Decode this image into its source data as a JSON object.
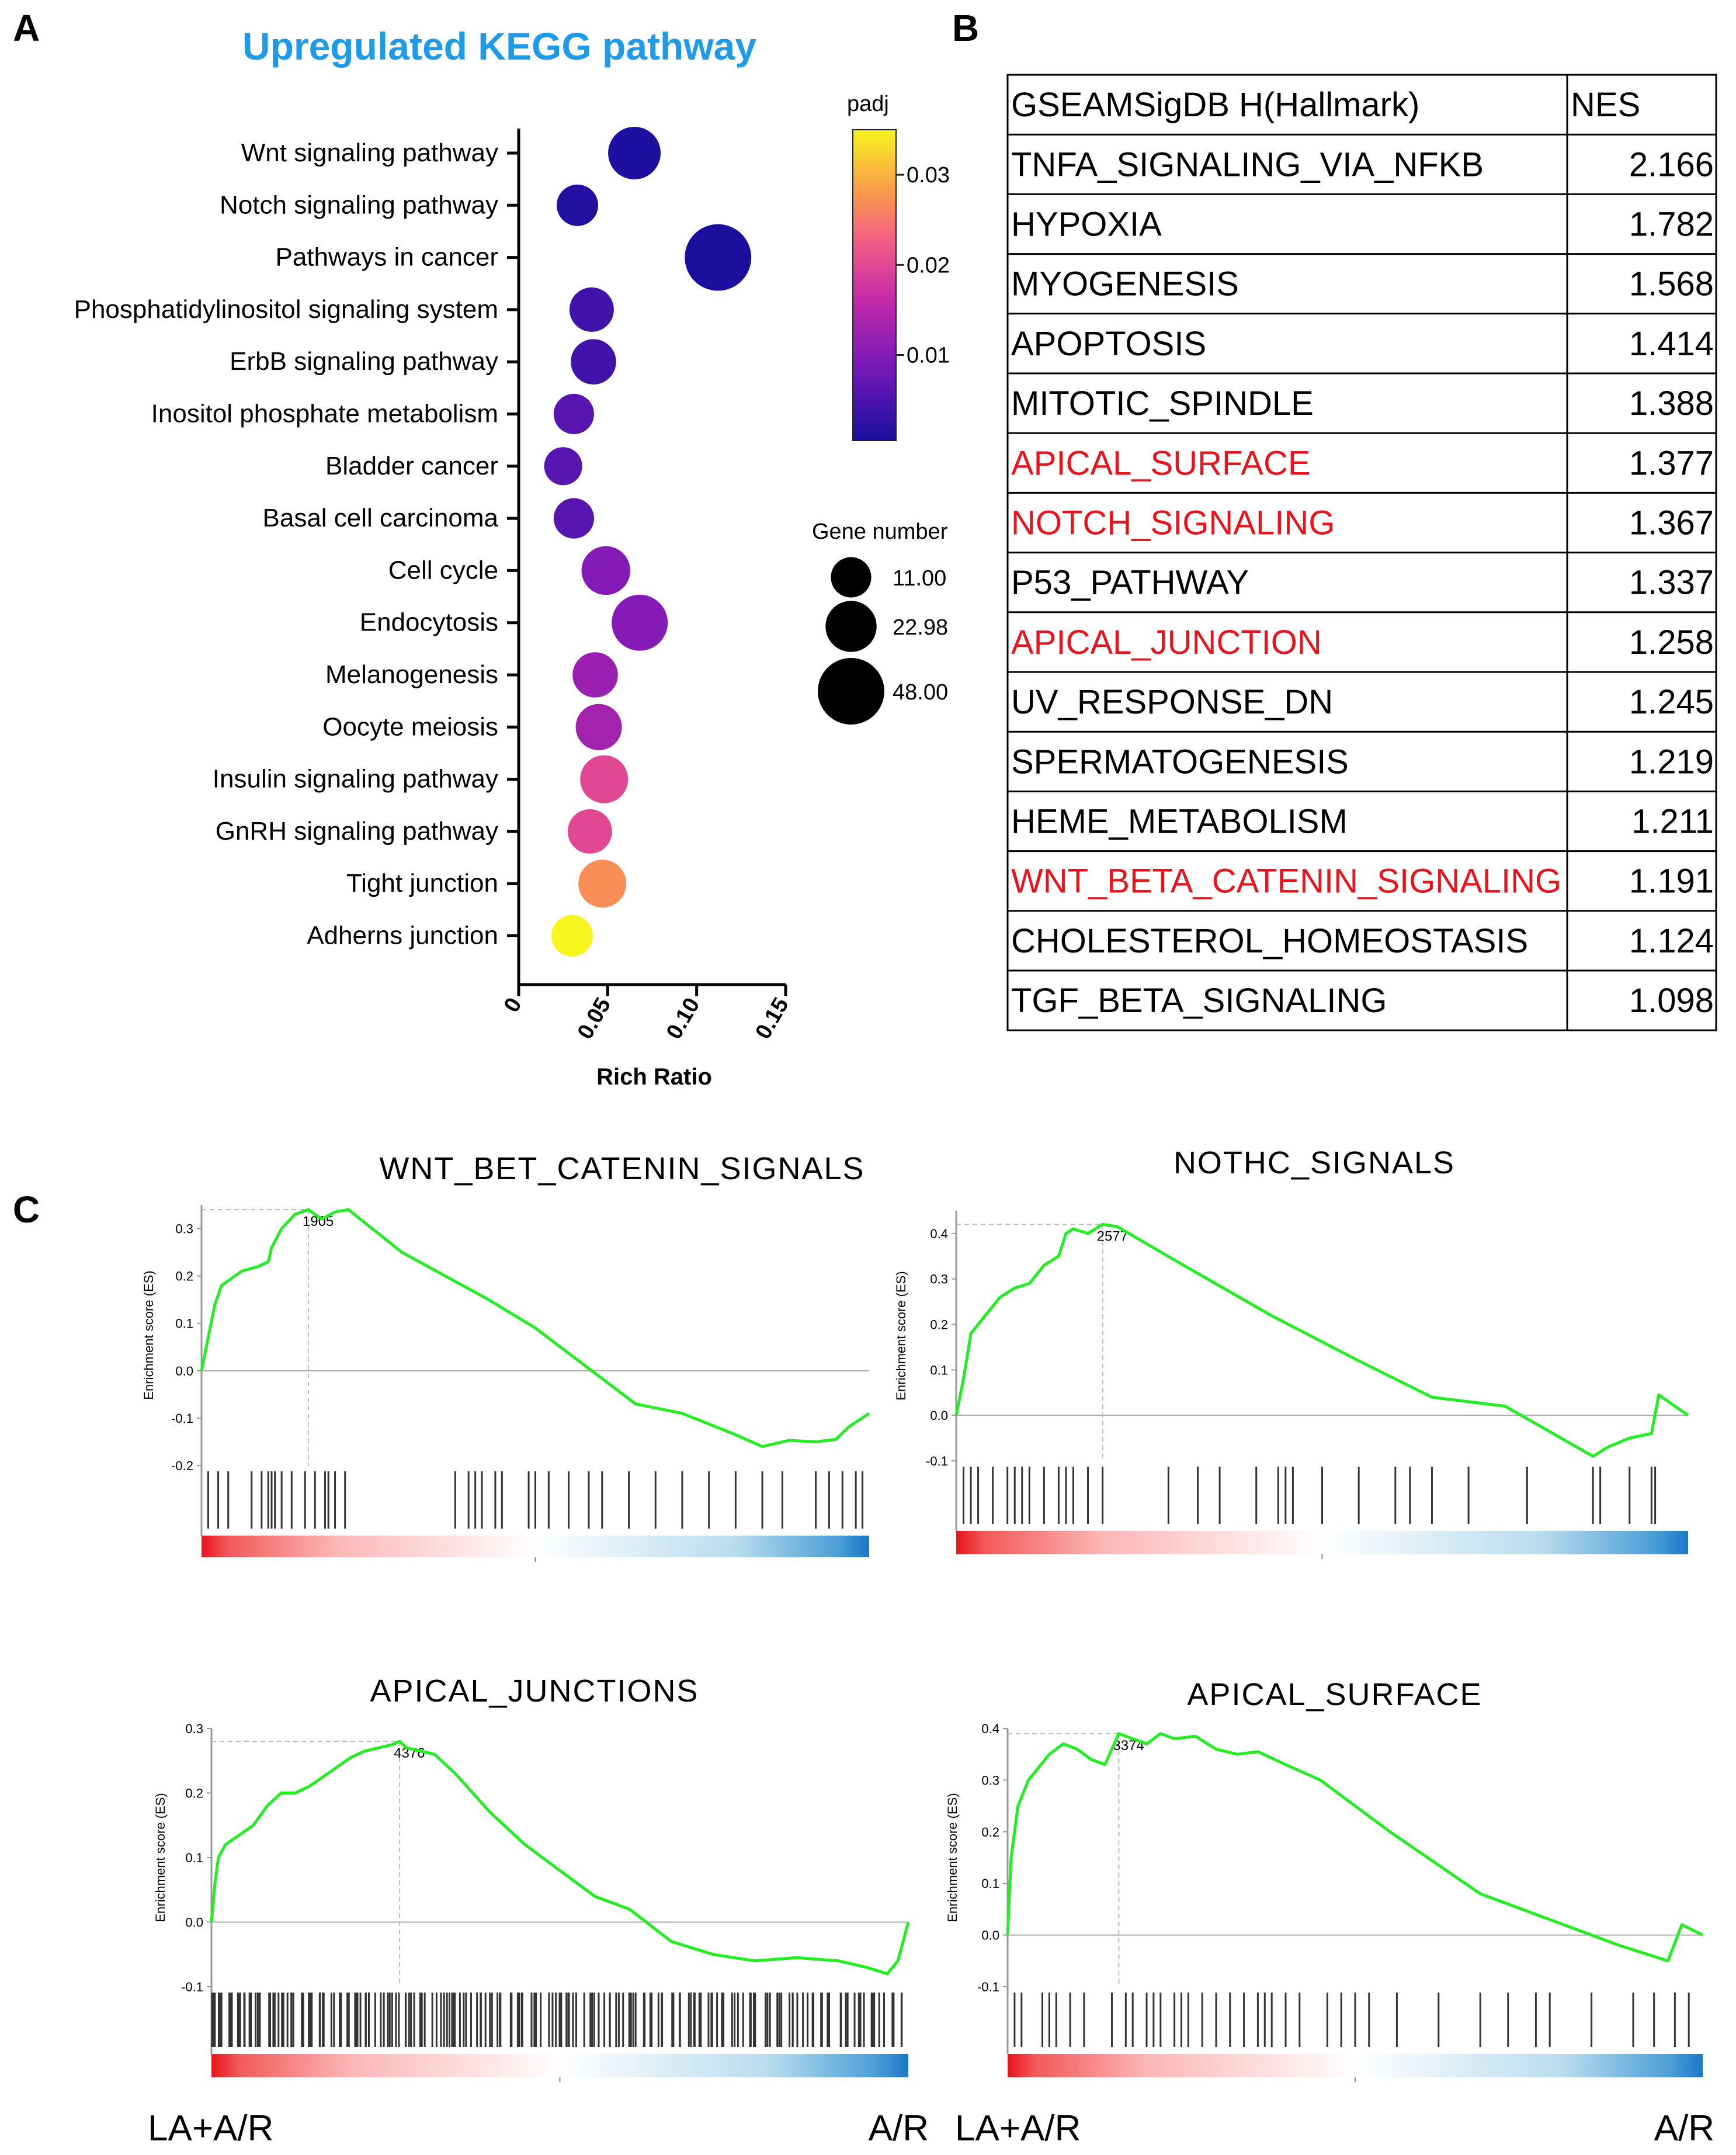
{
  "panels": {
    "a": "A",
    "b": "B",
    "c": "C"
  },
  "colors": {
    "title_blue": "#1e9be8",
    "highlight_red": "#e8141c",
    "es_line": "#22ee22",
    "rank_red": "#e8141c",
    "rank_blue": "#1b78c8"
  },
  "chart_data": [
    {
      "type": "scatter",
      "title": "Upregulated KEGG pathway",
      "xlabel": "Rich Ratio",
      "ylabel": "",
      "xlim": [
        0,
        0.15
      ],
      "xticks": [
        "0",
        "0.05",
        "0.10",
        "0.15"
      ],
      "color_legend": {
        "title": "padj",
        "ticks": [
          "0.03",
          "0.02",
          "0.01"
        ],
        "range": [
          0.0005,
          0.035
        ]
      },
      "size_legend": {
        "title": "Gene number",
        "values": [
          "11.00",
          "22.98",
          "48.00"
        ]
      },
      "points": [
        {
          "pathway": "Wnt signaling pathway",
          "rich_ratio": 0.065,
          "padj": 0.0008,
          "genes": 25
        },
        {
          "pathway": "Notch signaling pathway",
          "rich_ratio": 0.033,
          "padj": 0.0012,
          "genes": 12
        },
        {
          "pathway": "Pathways in cancer",
          "rich_ratio": 0.112,
          "padj": 0.0006,
          "genes": 48
        },
        {
          "pathway": "Phosphatidylinositol signaling system",
          "rich_ratio": 0.041,
          "padj": 0.004,
          "genes": 15
        },
        {
          "pathway": "ErbB signaling pathway",
          "rich_ratio": 0.042,
          "padj": 0.004,
          "genes": 16
        },
        {
          "pathway": "Inositol phosphate metabolism ",
          "rich_ratio": 0.031,
          "padj": 0.006,
          "genes": 11
        },
        {
          "pathway": "Bladder cancer",
          "rich_ratio": 0.025,
          "padj": 0.006,
          "genes": 9
        },
        {
          "pathway": "Basal cell carcinoma",
          "rich_ratio": 0.031,
          "padj": 0.006,
          "genes": 11
        },
        {
          "pathway": "Cell cycle",
          "rich_ratio": 0.049,
          "padj": 0.01,
          "genes": 20
        },
        {
          "pathway": "Endocytosis",
          "rich_ratio": 0.068,
          "padj": 0.01,
          "genes": 30
        },
        {
          "pathway": "Melanogenesis",
          "rich_ratio": 0.043,
          "padj": 0.012,
          "genes": 16
        },
        {
          "pathway": "Oocyte meiosis",
          "rich_ratio": 0.045,
          "padj": 0.013,
          "genes": 17
        },
        {
          "pathway": "Insulin signaling pathway",
          "rich_ratio": 0.048,
          "padj": 0.02,
          "genes": 19
        },
        {
          "pathway": "GnRH signaling pathway",
          "rich_ratio": 0.04,
          "padj": 0.02,
          "genes": 15
        },
        {
          "pathway": "Tight junction",
          "rich_ratio": 0.047,
          "padj": 0.027,
          "genes": 19
        },
        {
          "pathway": "Adherns junction",
          "rich_ratio": 0.03,
          "padj": 0.035,
          "genes": 12
        }
      ]
    },
    {
      "type": "table",
      "columns": [
        "GSEAMSigDB H(Hallmark)",
        "NES"
      ],
      "rows": [
        {
          "name": "TNFA_SIGNALING_VIA_NFKB",
          "nes": "2.166",
          "highlight": false
        },
        {
          "name": "HYPOXIA",
          "nes": "1.782",
          "highlight": false
        },
        {
          "name": "MYOGENESIS",
          "nes": "1.568",
          "highlight": false
        },
        {
          "name": "APOPTOSIS",
          "nes": "1.414",
          "highlight": false
        },
        {
          "name": "MITOTIC_SPINDLE",
          "nes": "1.388",
          "highlight": false
        },
        {
          "name": "APICAL_SURFACE",
          "nes": "1.377",
          "highlight": true
        },
        {
          "name": "NOTCH_SIGNALING",
          "nes": "1.367",
          "highlight": true
        },
        {
          "name": "P53_PATHWAY",
          "nes": "1.337",
          "highlight": false
        },
        {
          "name": "APICAL_JUNCTION",
          "nes": "1.258",
          "highlight": true
        },
        {
          "name": "UV_RESPONSE_DN",
          "nes": "1.245",
          "highlight": false
        },
        {
          "name": "SPERMATOGENESIS",
          "nes": "1.219",
          "highlight": false
        },
        {
          "name": "HEME_METABOLISM",
          "nes": "1.211",
          "highlight": false
        },
        {
          "name": "WNT_BETA_CATENIN_SIGNALING",
          "nes": "1.191",
          "highlight": true
        },
        {
          "name": "CHOLESTEROL_HOMEOSTASIS",
          "nes": "1.124",
          "highlight": false
        },
        {
          "name": "TGF_BETA_SIGNALING",
          "nes": "1.098",
          "highlight": false
        }
      ]
    },
    {
      "type": "line",
      "title": "WNT_BET_CATENIN_SIGNALS",
      "ylabel": "Enrichment score (ES)",
      "ylim": [
        -0.2,
        0.35
      ],
      "yticks": [
        "0.3",
        "0.2",
        "0.1",
        "0.0",
        "-0.1",
        "-0.2"
      ],
      "peak_label": "1905",
      "x": [
        0,
        0.01,
        0.02,
        0.03,
        0.06,
        0.085,
        0.1,
        0.105,
        0.12,
        0.14,
        0.16,
        0.18,
        0.2,
        0.22,
        0.3,
        0.43,
        0.5,
        0.65,
        0.72,
        0.8,
        0.84,
        0.88,
        0.92,
        0.95,
        0.97,
        1.0
      ],
      "y": [
        0,
        0.07,
        0.14,
        0.18,
        0.21,
        0.22,
        0.23,
        0.26,
        0.3,
        0.33,
        0.34,
        0.32,
        0.335,
        0.34,
        0.25,
        0.15,
        0.09,
        -0.07,
        -0.09,
        -0.135,
        -0.16,
        -0.147,
        -0.15,
        -0.145,
        -0.118,
        -0.09
      ],
      "hits": [
        0.01,
        0.025,
        0.04,
        0.075,
        0.09,
        0.1,
        0.105,
        0.11,
        0.12,
        0.135,
        0.155,
        0.17,
        0.185,
        0.19,
        0.2,
        0.215,
        0.38,
        0.4,
        0.41,
        0.42,
        0.44,
        0.45,
        0.49,
        0.5,
        0.52,
        0.55,
        0.58,
        0.6,
        0.64,
        0.68,
        0.72,
        0.76,
        0.8,
        0.84,
        0.87,
        0.92,
        0.94,
        0.96,
        0.98,
        0.99
      ],
      "xlabel_left": "",
      "xlabel_right": ""
    },
    {
      "type": "line",
      "title": "NOTHC_SIGNALS",
      "ylabel": "Enrichment score (ES)",
      "ylim": [
        -0.1,
        0.45
      ],
      "yticks": [
        "0.4",
        "0.3",
        "0.2",
        "0.1",
        "0.0",
        "-0.1"
      ],
      "peak_label": "2577",
      "x": [
        0,
        0.01,
        0.02,
        0.04,
        0.06,
        0.08,
        0.1,
        0.12,
        0.14,
        0.15,
        0.16,
        0.18,
        0.2,
        0.22,
        0.3,
        0.43,
        0.55,
        0.65,
        0.75,
        0.87,
        0.89,
        0.92,
        0.95,
        0.96,
        1.0
      ],
      "y": [
        0,
        0.08,
        0.18,
        0.22,
        0.26,
        0.28,
        0.29,
        0.33,
        0.35,
        0.4,
        0.41,
        0.4,
        0.42,
        0.415,
        0.34,
        0.22,
        0.12,
        0.04,
        0.02,
        -0.09,
        -0.07,
        -0.05,
        -0.04,
        0.045,
        0.0
      ],
      "hits": [
        0.01,
        0.02,
        0.03,
        0.05,
        0.07,
        0.08,
        0.09,
        0.1,
        0.12,
        0.14,
        0.15,
        0.16,
        0.18,
        0.2,
        0.29,
        0.33,
        0.36,
        0.41,
        0.44,
        0.45,
        0.46,
        0.5,
        0.55,
        0.6,
        0.62,
        0.65,
        0.7,
        0.78,
        0.87,
        0.88,
        0.92,
        0.95,
        0.955
      ],
      "xlabel_left": "",
      "xlabel_right": ""
    },
    {
      "type": "line",
      "title": "APICAL_JUNCTIONS",
      "ylabel": "Enrichment score (ES)",
      "ylim": [
        -0.1,
        0.3
      ],
      "yticks": [
        "0.3",
        "0.2",
        "0.1",
        "0.0",
        "-0.1"
      ],
      "peak_label": "4376",
      "x": [
        0,
        0.005,
        0.01,
        0.02,
        0.04,
        0.06,
        0.08,
        0.1,
        0.12,
        0.14,
        0.16,
        0.18,
        0.2,
        0.22,
        0.24,
        0.26,
        0.27,
        0.28,
        0.3,
        0.32,
        0.35,
        0.4,
        0.45,
        0.5,
        0.55,
        0.6,
        0.66,
        0.72,
        0.78,
        0.84,
        0.9,
        0.94,
        0.97,
        0.985,
        0.99,
        1.0
      ],
      "y": [
        0,
        0.06,
        0.1,
        0.12,
        0.135,
        0.15,
        0.18,
        0.2,
        0.2,
        0.21,
        0.225,
        0.24,
        0.255,
        0.265,
        0.27,
        0.275,
        0.28,
        0.27,
        0.265,
        0.26,
        0.23,
        0.17,
        0.12,
        0.08,
        0.04,
        0.02,
        -0.03,
        -0.05,
        -0.06,
        -0.055,
        -0.06,
        -0.07,
        -0.08,
        -0.06,
        -0.04,
        0.0
      ],
      "hits": [],
      "xlabel_left": "LA+A/R",
      "xlabel_right": "A/R"
    },
    {
      "type": "line",
      "title": "APICAL_SURFACE",
      "ylabel": "Enrichment score (ES)",
      "ylim": [
        -0.1,
        0.4
      ],
      "yticks": [
        "0.4",
        "0.3",
        "0.2",
        "0.1",
        "0.0",
        "-0.1"
      ],
      "peak_label": "3374",
      "x": [
        0,
        0.005,
        0.015,
        0.03,
        0.06,
        0.08,
        0.1,
        0.12,
        0.14,
        0.16,
        0.18,
        0.2,
        0.22,
        0.24,
        0.27,
        0.3,
        0.33,
        0.36,
        0.4,
        0.45,
        0.55,
        0.68,
        0.8,
        0.88,
        0.95,
        0.97,
        1.0
      ],
      "y": [
        0,
        0.15,
        0.25,
        0.3,
        0.35,
        0.37,
        0.36,
        0.34,
        0.33,
        0.39,
        0.38,
        0.37,
        0.39,
        0.38,
        0.385,
        0.36,
        0.35,
        0.355,
        0.33,
        0.3,
        0.2,
        0.08,
        0.02,
        -0.02,
        -0.05,
        0.02,
        0.0
      ],
      "hits": [
        0.01,
        0.02,
        0.05,
        0.06,
        0.07,
        0.09,
        0.11,
        0.15,
        0.17,
        0.18,
        0.2,
        0.21,
        0.22,
        0.24,
        0.25,
        0.26,
        0.28,
        0.3,
        0.32,
        0.34,
        0.36,
        0.37,
        0.38,
        0.4,
        0.42,
        0.46,
        0.48,
        0.5,
        0.52,
        0.56,
        0.62,
        0.68,
        0.72,
        0.76,
        0.78,
        0.84,
        0.9,
        0.93,
        0.96,
        0.98
      ],
      "xlabel_left": "LA+A/R",
      "xlabel_right": "A/R"
    }
  ]
}
